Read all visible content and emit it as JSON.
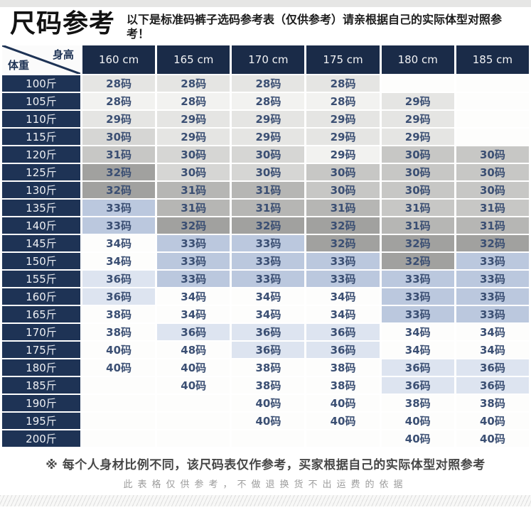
{
  "header": {
    "title": "尺码参考",
    "description": "以下是标准码裤子选码参考表（仅供参考）请亲根据自己的实际体型对照参考！"
  },
  "table": {
    "corner": {
      "top_right": "身高",
      "bottom_left": "体重"
    },
    "columns": [
      "160 cm",
      "165 cm",
      "170 cm",
      "175 cm",
      "180 cm",
      "185 cm"
    ],
    "rows": [
      {
        "weight": "100斤",
        "cells": [
          {
            "v": "28码",
            "t": "L"
          },
          {
            "v": "28码",
            "t": "L"
          },
          {
            "v": "28码",
            "t": "L"
          },
          {
            "v": "28码",
            "t": "L"
          },
          {
            "v": "",
            "t": "W"
          },
          {
            "v": "",
            "t": "W"
          }
        ]
      },
      {
        "weight": "105斤",
        "cells": [
          {
            "v": "28码",
            "t": "XL"
          },
          {
            "v": "28码",
            "t": "XL"
          },
          {
            "v": "28码",
            "t": "XL"
          },
          {
            "v": "28码",
            "t": "XL"
          },
          {
            "v": "29码",
            "t": "L"
          },
          {
            "v": "",
            "t": "W"
          }
        ]
      },
      {
        "weight": "110斤",
        "cells": [
          {
            "v": "29码",
            "t": "L"
          },
          {
            "v": "29码",
            "t": "L"
          },
          {
            "v": "29码",
            "t": "L"
          },
          {
            "v": "29码",
            "t": "L"
          },
          {
            "v": "29码",
            "t": "L"
          },
          {
            "v": "",
            "t": "W"
          }
        ]
      },
      {
        "weight": "115斤",
        "cells": [
          {
            "v": "30码",
            "t": "ML"
          },
          {
            "v": "29码",
            "t": "L"
          },
          {
            "v": "29码",
            "t": "L"
          },
          {
            "v": "29码",
            "t": "L"
          },
          {
            "v": "29码",
            "t": "L"
          },
          {
            "v": "",
            "t": "W"
          }
        ]
      },
      {
        "weight": "120斤",
        "cells": [
          {
            "v": "31码",
            "t": "M"
          },
          {
            "v": "30码",
            "t": "ML"
          },
          {
            "v": "30码",
            "t": "ML"
          },
          {
            "v": "29码",
            "t": "XL"
          },
          {
            "v": "30码",
            "t": "M"
          },
          {
            "v": "30码",
            "t": "M"
          }
        ]
      },
      {
        "weight": "125斤",
        "cells": [
          {
            "v": "32码",
            "t": "D"
          },
          {
            "v": "30码",
            "t": "ML"
          },
          {
            "v": "30码",
            "t": "ML"
          },
          {
            "v": "30码",
            "t": "M"
          },
          {
            "v": "30码",
            "t": "M"
          },
          {
            "v": "30码",
            "t": "M"
          }
        ]
      },
      {
        "weight": "130斤",
        "cells": [
          {
            "v": "32码",
            "t": "D"
          },
          {
            "v": "31码",
            "t": "DM"
          },
          {
            "v": "31码",
            "t": "DM"
          },
          {
            "v": "30码",
            "t": "M"
          },
          {
            "v": "30码",
            "t": "M"
          },
          {
            "v": "30码",
            "t": "M"
          }
        ]
      },
      {
        "weight": "135斤",
        "cells": [
          {
            "v": "33码",
            "t": "B"
          },
          {
            "v": "31码",
            "t": "DM"
          },
          {
            "v": "31码",
            "t": "DM"
          },
          {
            "v": "31码",
            "t": "DM"
          },
          {
            "v": "31码",
            "t": "M"
          },
          {
            "v": "31码",
            "t": "M"
          }
        ]
      },
      {
        "weight": "140斤",
        "cells": [
          {
            "v": "33码",
            "t": "B"
          },
          {
            "v": "32码",
            "t": "D"
          },
          {
            "v": "32码",
            "t": "D"
          },
          {
            "v": "32码",
            "t": "D"
          },
          {
            "v": "31码",
            "t": "DM"
          },
          {
            "v": "31码",
            "t": "DM"
          }
        ]
      },
      {
        "weight": "145斤",
        "cells": [
          {
            "v": "34码",
            "t": "W"
          },
          {
            "v": "33码",
            "t": "B"
          },
          {
            "v": "33码",
            "t": "B"
          },
          {
            "v": "32码",
            "t": "D"
          },
          {
            "v": "32码",
            "t": "D"
          },
          {
            "v": "32码",
            "t": "D"
          }
        ]
      },
      {
        "weight": "150斤",
        "cells": [
          {
            "v": "34码",
            "t": "W"
          },
          {
            "v": "33码",
            "t": "B"
          },
          {
            "v": "33码",
            "t": "B"
          },
          {
            "v": "33码",
            "t": "B"
          },
          {
            "v": "32码",
            "t": "D"
          },
          {
            "v": "33码",
            "t": "B"
          }
        ]
      },
      {
        "weight": "155斤",
        "cells": [
          {
            "v": "36码",
            "t": "PB"
          },
          {
            "v": "33码",
            "t": "B"
          },
          {
            "v": "33码",
            "t": "B"
          },
          {
            "v": "33码",
            "t": "B"
          },
          {
            "v": "33码",
            "t": "B"
          },
          {
            "v": "33码",
            "t": "B"
          }
        ]
      },
      {
        "weight": "160斤",
        "cells": [
          {
            "v": "36码",
            "t": "PB"
          },
          {
            "v": "34码",
            "t": "W"
          },
          {
            "v": "34码",
            "t": "W"
          },
          {
            "v": "34码",
            "t": "W"
          },
          {
            "v": "33码",
            "t": "B"
          },
          {
            "v": "33码",
            "t": "B"
          }
        ]
      },
      {
        "weight": "165斤",
        "cells": [
          {
            "v": "38码",
            "t": "W"
          },
          {
            "v": "34码",
            "t": "W"
          },
          {
            "v": "34码",
            "t": "W"
          },
          {
            "v": "34码",
            "t": "W"
          },
          {
            "v": "33码",
            "t": "B"
          },
          {
            "v": "33码",
            "t": "B"
          }
        ]
      },
      {
        "weight": "170斤",
        "cells": [
          {
            "v": "38码",
            "t": "W"
          },
          {
            "v": "36码",
            "t": "PB"
          },
          {
            "v": "36码",
            "t": "PB"
          },
          {
            "v": "36码",
            "t": "PB"
          },
          {
            "v": "34码",
            "t": "W"
          },
          {
            "v": "34码",
            "t": "W"
          }
        ]
      },
      {
        "weight": "175斤",
        "cells": [
          {
            "v": "40码",
            "t": "W"
          },
          {
            "v": "48码",
            "t": "W"
          },
          {
            "v": "36码",
            "t": "PB"
          },
          {
            "v": "36码",
            "t": "PB"
          },
          {
            "v": "34码",
            "t": "W"
          },
          {
            "v": "34码",
            "t": "W"
          }
        ]
      },
      {
        "weight": "180斤",
        "cells": [
          {
            "v": "40码",
            "t": "W"
          },
          {
            "v": "40码",
            "t": "W"
          },
          {
            "v": "38码",
            "t": "W"
          },
          {
            "v": "38码",
            "t": "W"
          },
          {
            "v": "36码",
            "t": "PB"
          },
          {
            "v": "36码",
            "t": "PB"
          }
        ]
      },
      {
        "weight": "185斤",
        "cells": [
          {
            "v": "",
            "t": "W"
          },
          {
            "v": "40码",
            "t": "W"
          },
          {
            "v": "38码",
            "t": "W"
          },
          {
            "v": "38码",
            "t": "W"
          },
          {
            "v": "36码",
            "t": "PB"
          },
          {
            "v": "36码",
            "t": "PB"
          }
        ]
      },
      {
        "weight": "190斤",
        "cells": [
          {
            "v": "",
            "t": "W"
          },
          {
            "v": "",
            "t": "W"
          },
          {
            "v": "40码",
            "t": "W"
          },
          {
            "v": "40码",
            "t": "W"
          },
          {
            "v": "38码",
            "t": "W"
          },
          {
            "v": "38码",
            "t": "W"
          }
        ]
      },
      {
        "weight": "195斤",
        "cells": [
          {
            "v": "",
            "t": "W"
          },
          {
            "v": "",
            "t": "W"
          },
          {
            "v": "40码",
            "t": "W"
          },
          {
            "v": "40码",
            "t": "W"
          },
          {
            "v": "40码",
            "t": "W"
          },
          {
            "v": "40码",
            "t": "W"
          }
        ]
      },
      {
        "weight": "200斤",
        "cells": [
          {
            "v": "",
            "t": "W"
          },
          {
            "v": "",
            "t": "W"
          },
          {
            "v": "",
            "t": "W"
          },
          {
            "v": "",
            "t": "W"
          },
          {
            "v": "40码",
            "t": "W"
          },
          {
            "v": "40码",
            "t": "W"
          }
        ]
      }
    ]
  },
  "tone_colors": {
    "W": "#fdfdfc",
    "XL": "#f2f2f0",
    "L": "#e5e5e3",
    "ML": "#d6d6d4",
    "M": "#c7c7c5",
    "DM": "#b6b6b4",
    "D": "#a1a19f",
    "B": "#bbc8de",
    "PB": "#dde4f0"
  },
  "accent_colors": {
    "header_navy": "#1a2b48",
    "row_label_navy": "#1e3355",
    "cell_text": "#3b4f73"
  },
  "footer": {
    "note1": "※ 每个人身材比例不同，该尺码表仅作参考，买家根据自己的实际体型对照参考",
    "note2": "此表格仅供参考，不做退换货不出运费的依据"
  }
}
